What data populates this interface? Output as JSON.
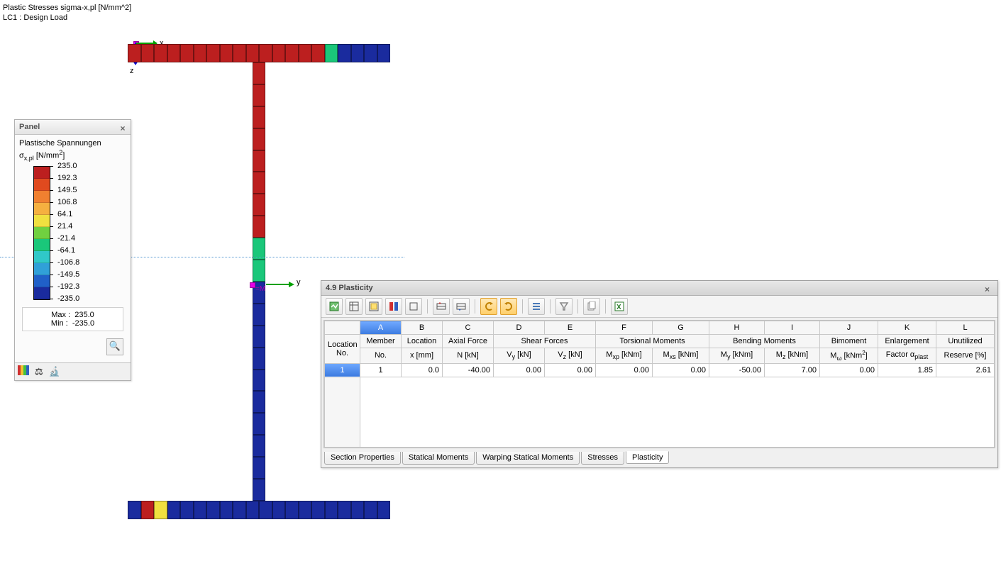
{
  "header": {
    "line1": "Plastic Stresses sigma-x,pl [N/mm^2]",
    "line2": "LC1 : Design Load"
  },
  "diagram": {
    "top_flange_colors": [
      "#bc1f1f",
      "#bc1f1f",
      "#bc1f1f",
      "#bc1f1f",
      "#bc1f1f",
      "#bc1f1f",
      "#bc1f1f",
      "#bc1f1f",
      "#bc1f1f",
      "#bc1f1f",
      "#bc1f1f",
      "#bc1f1f",
      "#bc1f1f",
      "#bc1f1f",
      "#bc1f1f",
      "#1ac77a",
      "#1a2b9e",
      "#1a2b9e",
      "#1a2b9e",
      "#1a2b9e"
    ],
    "bottom_flange_colors": [
      "#1a2b9e",
      "#bc1f1f",
      "#f0e040",
      "#1a2b9e",
      "#1a2b9e",
      "#1a2b9e",
      "#1a2b9e",
      "#1a2b9e",
      "#1a2b9e",
      "#1a2b9e",
      "#1a2b9e",
      "#1a2b9e",
      "#1a2b9e",
      "#1a2b9e",
      "#1a2b9e",
      "#1a2b9e",
      "#1a2b9e",
      "#1a2b9e",
      "#1a2b9e",
      "#1a2b9e"
    ],
    "web_colors": [
      "#bc1f1f",
      "#bc1f1f",
      "#bc1f1f",
      "#bc1f1f",
      "#bc1f1f",
      "#bc1f1f",
      "#bc1f1f",
      "#bc1f1f",
      "#1ac77a",
      "#1ac77a",
      "#1a2b9e",
      "#1a2b9e",
      "#1a2b9e",
      "#1a2b9e",
      "#1a2b9e",
      "#1a2b9e",
      "#1a2b9e",
      "#1a2b9e",
      "#1a2b9e",
      "#1a2b9e"
    ],
    "axis_y_label": "y",
    "axis_z_label": "z",
    "axis_M_label": "=M"
  },
  "legend": {
    "panel_title": "Panel",
    "title": "Plastische Spannungen",
    "unit": "σx,pl [N/mm²]",
    "colors": [
      "#bc1f1f",
      "#e04a1f",
      "#f08030",
      "#f5b040",
      "#f0e040",
      "#70d040",
      "#1ac77a",
      "#30c8c8",
      "#30a0d8",
      "#2060c8",
      "#1a2b9e"
    ],
    "values": [
      "235.0",
      "192.3",
      "149.5",
      "106.8",
      "64.1",
      "21.4",
      "-21.4",
      "-64.1",
      "-106.8",
      "-149.5",
      "-192.3",
      "-235.0"
    ],
    "max_label": "Max  :",
    "max_value": "235.0",
    "min_label": "Min   :",
    "min_value": "-235.0"
  },
  "results": {
    "title": "4.9 Plasticity",
    "col_letters": [
      "A",
      "B",
      "C",
      "D",
      "E",
      "F",
      "G",
      "H",
      "I",
      "J",
      "K",
      "L"
    ],
    "location_no_label": "Location No.",
    "groups": {
      "member": "Member",
      "location": "Location",
      "axial": "Axial Force",
      "shear": "Shear Forces",
      "torsion": "Torsional Moments",
      "bending": "Bending Moments",
      "bimoment": "Bimoment",
      "enlargement": "Enlargement",
      "unutilized": "Unutilized"
    },
    "units": {
      "member": "No.",
      "location": "x [mm]",
      "axial": "N [kN]",
      "vy": "Vy [kN]",
      "vz": "Vz [kN]",
      "mxp": "Mxp [kNm]",
      "mxs": "Mxs [kNm]",
      "my": "My [kNm]",
      "mz": "Mz [kNm]",
      "mw": "Mω [kNm²]",
      "factor": "Factor αplast",
      "reserve": "Reserve [%]"
    },
    "row": {
      "loc": "1",
      "member": "1",
      "x": "0.0",
      "N": "-40.00",
      "Vy": "0.00",
      "Vz": "0.00",
      "Mxp": "0.00",
      "Mxs": "0.00",
      "My": "-50.00",
      "Mz": "7.00",
      "Mw": "0.00",
      "factor": "1.85",
      "reserve": "2.61"
    },
    "tabs": [
      "Section Properties",
      "Statical Moments",
      "Warping Statical Moments",
      "Stresses",
      "Plasticity"
    ],
    "active_tab": 4
  }
}
